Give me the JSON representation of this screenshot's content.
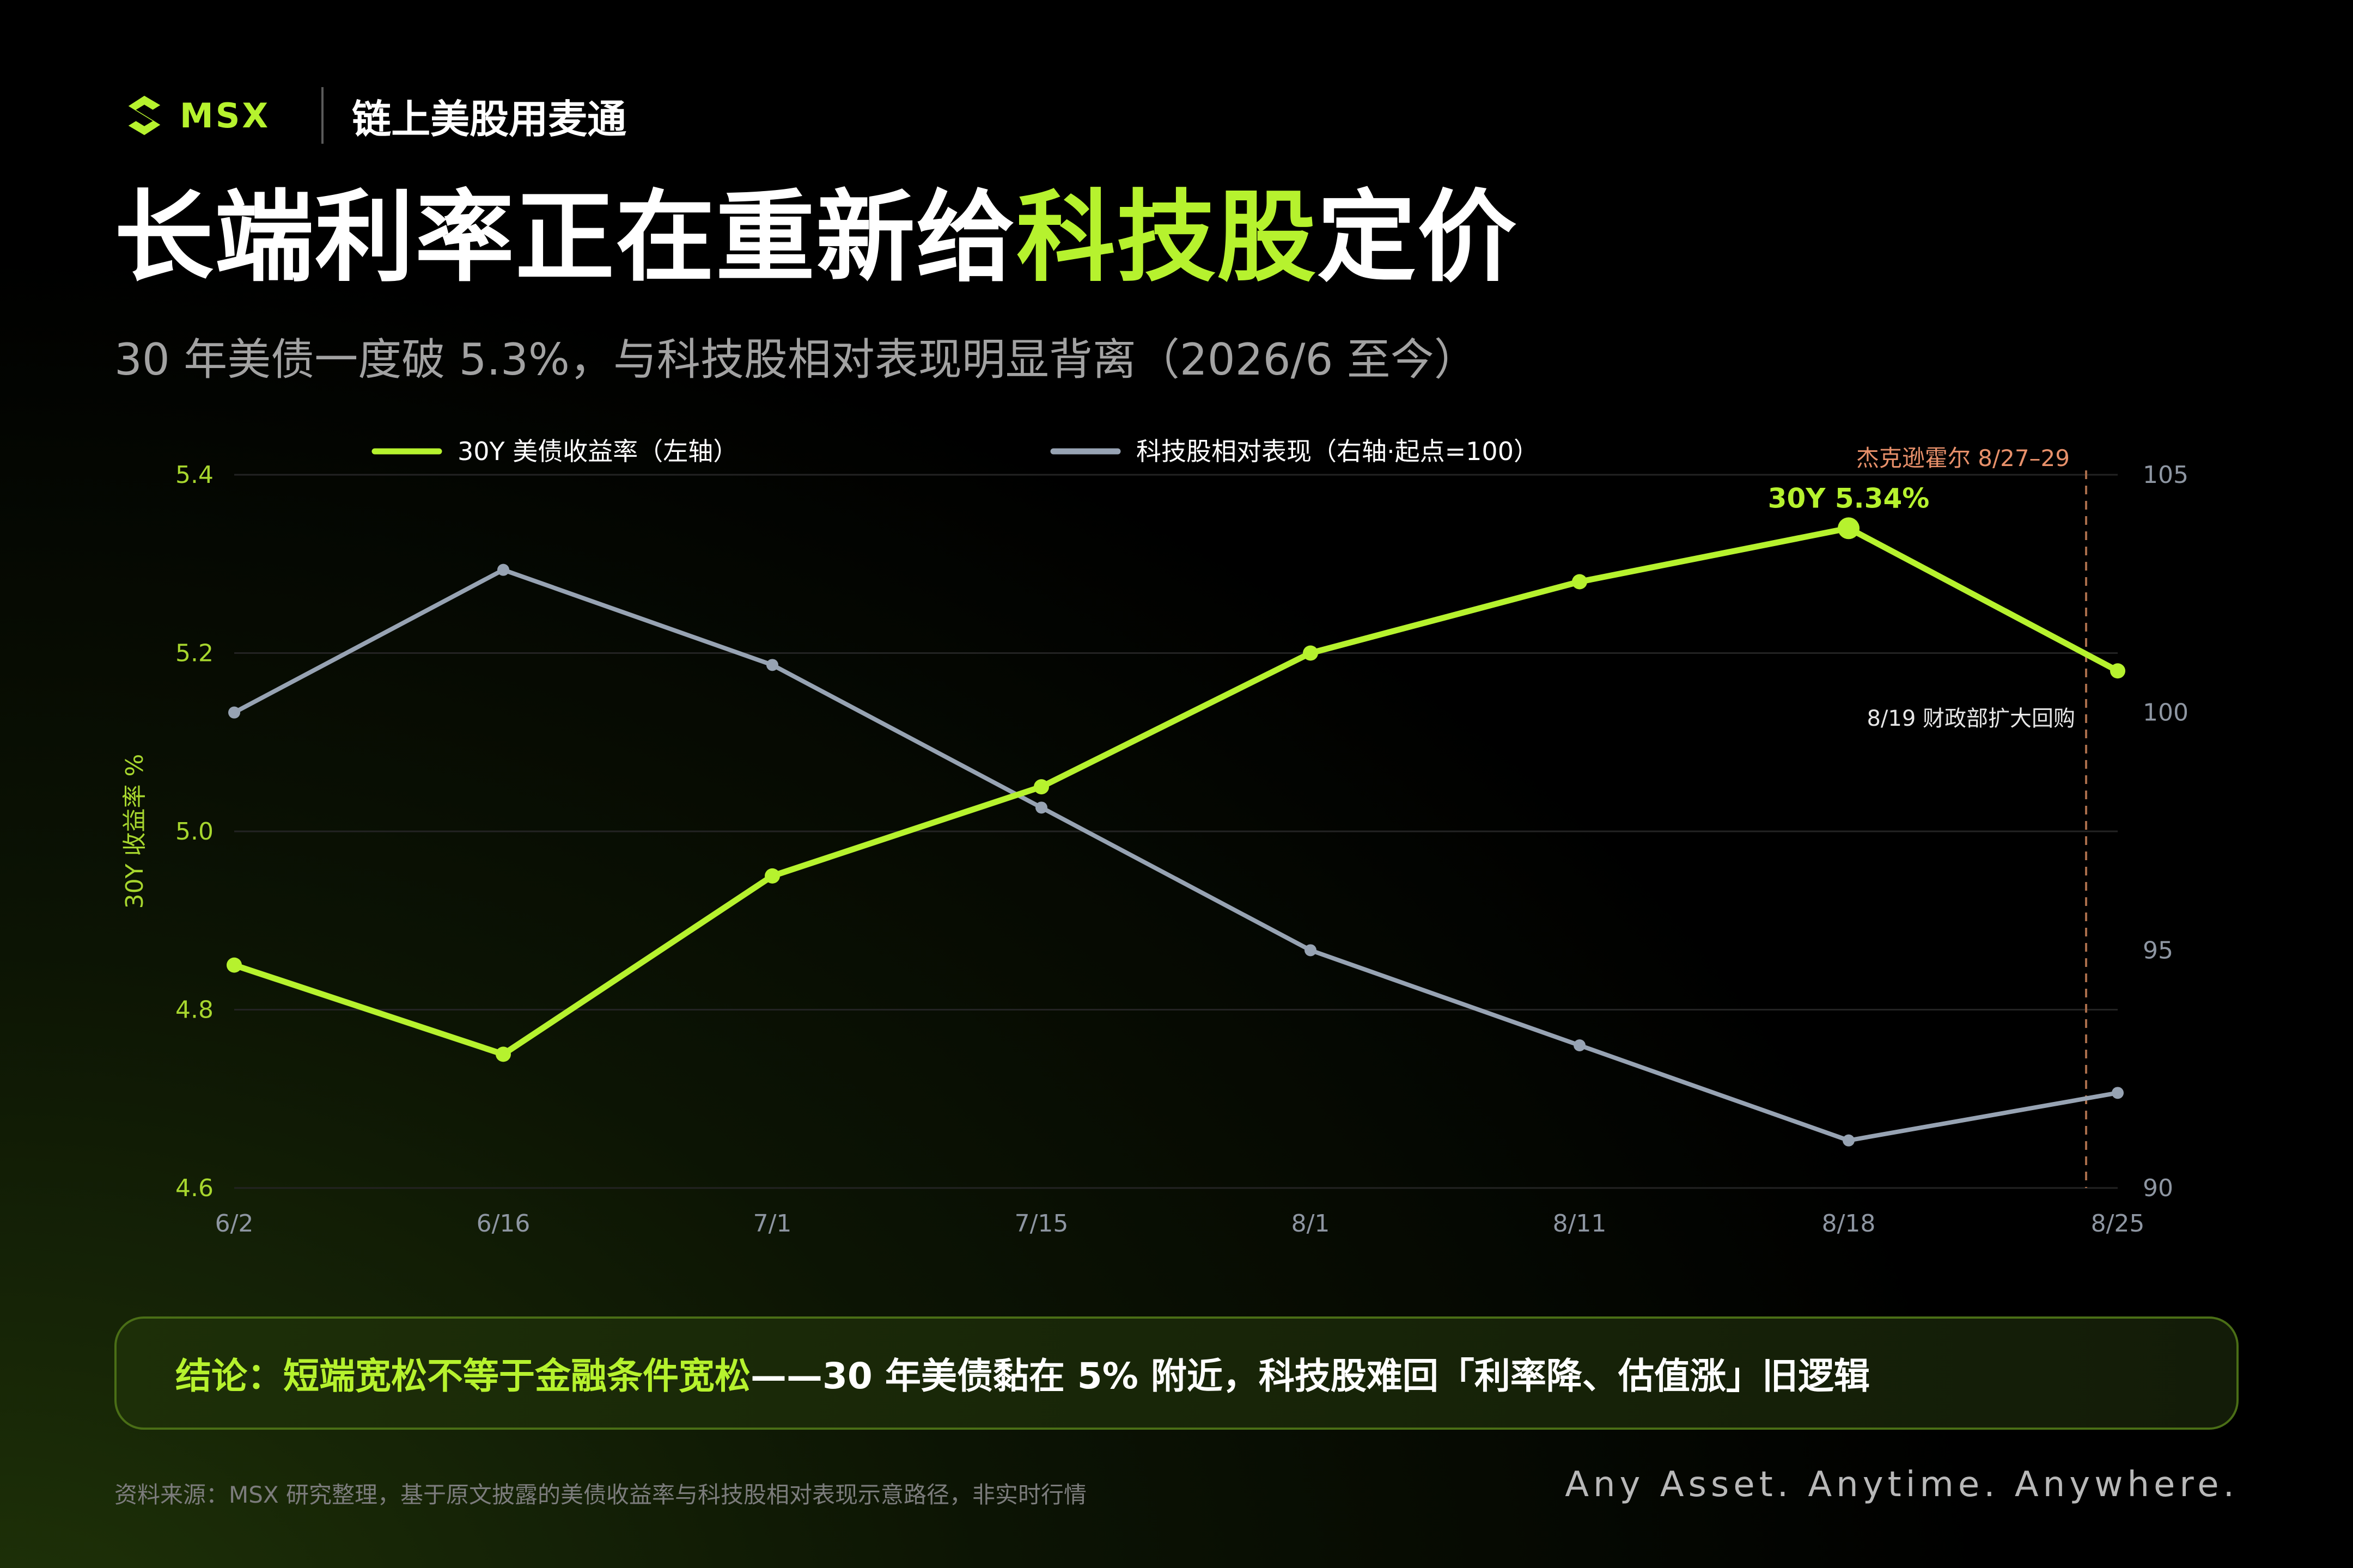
{
  "header": {
    "brand_name": "MSX",
    "slogan": "链上美股用麦通",
    "title_prefix": "长端利率正在重新给",
    "title_highlight": "科技股",
    "title_suffix": "定价",
    "subtitle": "30 年美债一度破 5.3%，与科技股相对表现明显背离（2026/6 至今）"
  },
  "conclusion": {
    "label": "结论：",
    "highlight": "短端宽松不等于金融条件宽松",
    "rest": "——30 年美债黏在 5% 附近，科技股难回「利率降、估值涨」旧逻辑"
  },
  "footer": {
    "source": "资料来源：MSX 研究整理，基于原文披露的美债收益率与科技股相对表现示意路径，非实时行情",
    "tagline": "Any Asset. Anytime. Anywhere."
  },
  "colors": {
    "accent": "#b6f22e",
    "grey_series": "#97a3b3",
    "event": "#e7906a"
  },
  "chart_data": {
    "type": "line",
    "categories": [
      "6/2",
      "6/16",
      "7/1",
      "7/15",
      "8/1",
      "8/11",
      "8/18",
      "8/25"
    ],
    "series": [
      {
        "name": "30Y 美债收益率（左轴）",
        "axis": "left",
        "color": "#b6f22e",
        "values": [
          4.85,
          4.75,
          4.95,
          5.05,
          5.2,
          5.28,
          5.34,
          5.18
        ]
      },
      {
        "name": "科技股相对表现（右轴·起点=100）",
        "axis": "right",
        "color": "#97a3b3",
        "values": [
          100,
          103,
          101,
          98,
          95,
          93,
          91,
          92
        ]
      }
    ],
    "ylabel": "30Y 收益率 %",
    "ylim": [
      4.6,
      5.4
    ],
    "yticks": [
      "4.6",
      "4.8",
      "5.0",
      "5.2",
      "5.4"
    ],
    "y2lim": [
      90,
      105
    ],
    "y2ticks": [
      "90",
      "95",
      "100",
      "105"
    ],
    "grid": true,
    "legend": "top",
    "annotations": {
      "peak_label": "30Y 5.34%",
      "event_label": "杰克逊霍尔 8/27–29",
      "event_note": "8/19 财政部扩大回购"
    }
  }
}
